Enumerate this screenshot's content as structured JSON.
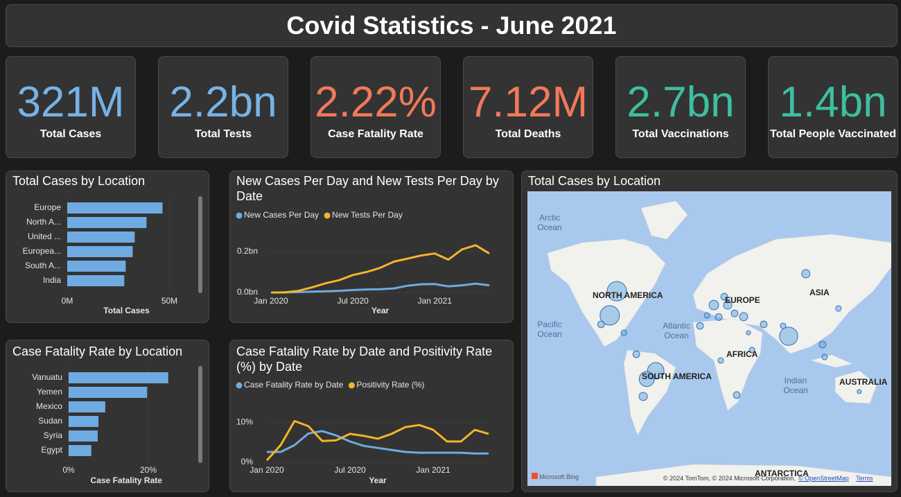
{
  "header": {
    "title": "Covid Statistics - June 2021"
  },
  "kpis": [
    {
      "value": "321M",
      "label": "Total Cases",
      "color": "#78b2e6"
    },
    {
      "value": "2.2bn",
      "label": "Total Tests",
      "color": "#78b2e6"
    },
    {
      "value": "2.22%",
      "label": "Case Fatality Rate",
      "color": "#f0795a"
    },
    {
      "value": "7.12M",
      "label": "Total Deaths",
      "color": "#f0795a"
    },
    {
      "value": "2.7bn",
      "label": "Total Vaccinations",
      "color": "#3dbfa0"
    },
    {
      "value": "1.4bn",
      "label": "Total People Vaccinated",
      "color": "#3dbfa0"
    }
  ],
  "chart_data": [
    {
      "type": "bar",
      "title": "Total Cases by Location",
      "categories": [
        "Europe",
        "North A...",
        "United ...",
        "Europea...",
        "South A...",
        "India"
      ],
      "values": [
        46600000,
        38800000,
        33000000,
        32000000,
        28600000,
        27900000
      ],
      "color": "#6fabe2",
      "xlim": [
        0,
        60000000
      ],
      "xticks": [
        {
          "value": 0,
          "label": "0M"
        },
        {
          "value": 50000000,
          "label": "50M"
        }
      ],
      "xlabel": "Total Cases",
      "grid": true
    },
    {
      "type": "line",
      "title": "New Cases Per Day and New Tests Per Day by Date",
      "x": [
        "2020-01",
        "2020-02",
        "2020-03",
        "2020-04",
        "2020-05",
        "2020-06",
        "2020-07",
        "2020-08",
        "2020-09",
        "2020-10",
        "2020-11",
        "2020-12",
        "2021-01",
        "2021-02",
        "2021-03",
        "2021-04",
        "2021-05"
      ],
      "series": [
        {
          "name": "New Cases Per Day",
          "color": "#6fabe2",
          "values": [
            0,
            500000,
            2000000,
            4000000,
            6000000,
            8000000,
            12000000,
            15000000,
            16000000,
            20000000,
            33000000,
            40000000,
            41000000,
            30000000,
            35000000,
            43000000,
            35000000
          ]
        },
        {
          "name": "New Tests Per Day",
          "color": "#f2b52a",
          "values": [
            0,
            1000000,
            8000000,
            25000000,
            45000000,
            60000000,
            85000000,
            100000000,
            120000000,
            150000000,
            165000000,
            180000000,
            190000000,
            160000000,
            210000000,
            230000000,
            190000000
          ]
        }
      ],
      "xlim": [
        "2020-01",
        "2021-05"
      ],
      "xticks": [
        {
          "value": "2020-01",
          "label": "Jan 2020"
        },
        {
          "value": "2020-07",
          "label": "Jul 2020"
        },
        {
          "value": "2021-01",
          "label": "Jan 2021"
        }
      ],
      "ylim": [
        0,
        280000000
      ],
      "yticks": [
        {
          "value": 0,
          "label": "0.0bn"
        },
        {
          "value": 200000000,
          "label": "0.2bn"
        }
      ],
      "xlabel": "Year",
      "grid": true
    },
    {
      "type": "bar",
      "title": "Case Fatality Rate by Location",
      "categories": [
        "Vanuatu",
        "Yemen",
        "Mexico",
        "Sudan",
        "Syria",
        "Egypt"
      ],
      "values": [
        25,
        19.7,
        9.2,
        7.5,
        7.3,
        5.7
      ],
      "color": "#6fabe2",
      "xlim": [
        0,
        30
      ],
      "xticks": [
        {
          "value": 0,
          "label": "0%"
        },
        {
          "value": 20,
          "label": "20%"
        }
      ],
      "xlabel": "Case Fatality Rate",
      "grid": true
    },
    {
      "type": "line",
      "title": "Case Fatality Rate by Date and Positivity Rate (%) by Date",
      "x": [
        "2020-01",
        "2020-02",
        "2020-03",
        "2020-04",
        "2020-05",
        "2020-06",
        "2020-07",
        "2020-08",
        "2020-09",
        "2020-10",
        "2020-11",
        "2020-12",
        "2021-01",
        "2021-02",
        "2021-03",
        "2021-04",
        "2021-05"
      ],
      "series": [
        {
          "name": "Case Fatality Rate by Date",
          "color": "#6fabe2",
          "values": [
            2.6,
            2.6,
            4.3,
            7.2,
            7.8,
            6.7,
            5.2,
            4.1,
            3.6,
            3.1,
            2.6,
            2.4,
            2.4,
            2.4,
            2.4,
            2.2,
            2.2
          ]
        },
        {
          "name": "Positivity Rate (%)",
          "color": "#f2b52a",
          "values": [
            0.5,
            4.3,
            10.3,
            9.0,
            5.3,
            5.5,
            7.1,
            6.6,
            5.9,
            7.1,
            8.8,
            9.3,
            8.1,
            5.2,
            5.2,
            8.1,
            7.1
          ]
        }
      ],
      "xlim": [
        "2020-01",
        "2021-05"
      ],
      "xticks": [
        {
          "value": "2020-01",
          "label": "Jan 2020"
        },
        {
          "value": "2020-07",
          "label": "Jul 2020"
        },
        {
          "value": "2021-01",
          "label": "Jan 2021"
        }
      ],
      "ylim": [
        0,
        14
      ],
      "yticks": [
        {
          "value": 0,
          "label": "0%"
        },
        {
          "value": 10,
          "label": "10%"
        }
      ],
      "xlabel": "Year",
      "grid": true
    },
    {
      "type": "bubble-map",
      "title": "Total Cases by Location",
      "x": [
        -96,
        -103,
        74,
        -57.5,
        -66.4,
        91,
        13.7,
        0,
        10.3,
        20.5,
        29.5,
        4.8,
        -13.7,
        49.3,
        37.7,
        22.6,
        -69.9,
        -76.7,
        -111.6,
        107.5,
        68.5,
        123.3,
        109.6,
        6.8,
        -89,
        143.8,
        -6.8,
        34.2
      ],
      "values": [
        58.2,
        43.2,
        26.4,
        -6.8,
        -14.8,
        66.2,
        50.2,
        50.2,
        55.2,
        44.6,
        42.3,
        42,
        35.2,
        36.4,
        13.6,
        -29.4,
        -30.6,
        9.5,
        36.4,
        18.8,
        35.2,
        48,
        6.8,
        3.4,
        29.4,
        -26.4,
        43.2,
        29.4
      ],
      "sizes": [
        33000000,
        33000000,
        29000000,
        24000000,
        20000000,
        6000000,
        6000000,
        8000000,
        4000000,
        4000000,
        6000000,
        4000000,
        4000000,
        4000000,
        2700000,
        4000000,
        6000000,
        4000000,
        4000000,
        4000000,
        2700000,
        2700000,
        2700000,
        2700000,
        2700000,
        1500000,
        2700000,
        1500000
      ],
      "color": "#6fabe2",
      "annotations": [
        "Arctic Ocean",
        "NORTH AMERICA",
        "Pacific Ocean",
        "Atlantic Ocean",
        "EUROPE",
        "ASIA",
        "AFRICA",
        "SOUTH AMERICA",
        "Indian Ocean",
        "AUSTRALIA",
        "ANTARCTICA"
      ],
      "credits": [
        "Microsoft Bing",
        "© 2024 TomTom, © 2024 Microsoft Corporation,",
        "© OpenStreetMap",
        "Terms"
      ]
    }
  ]
}
